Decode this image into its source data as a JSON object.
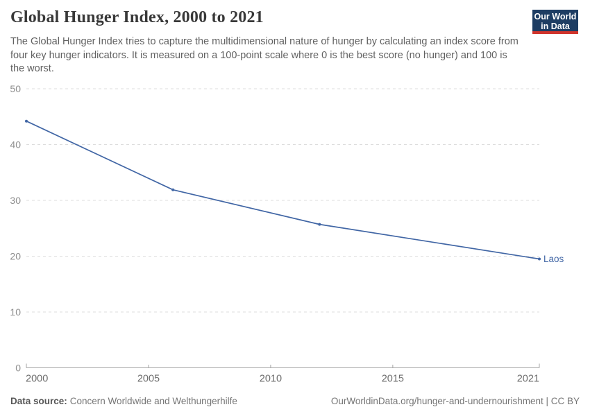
{
  "header": {
    "title": "Global Hunger Index, 2000 to 2021",
    "subtitle": "The Global Hunger Index tries to capture the multidimensional nature of hunger by calculating an index score from four key hunger indicators. It is measured on a 100-point scale where 0 is the best score (no hunger) and 100 is the worst."
  },
  "logo": {
    "line1": "Our World",
    "line2": "in Data",
    "bg_color": "#1d3d63",
    "stripe_color": "#d0342c"
  },
  "chart_data": {
    "type": "line",
    "title": "Global Hunger Index, 2000 to 2021",
    "xlabel": "",
    "ylabel": "",
    "xlim": [
      2000,
      2021
    ],
    "ylim": [
      0,
      50
    ],
    "x_ticks": [
      2000,
      2005,
      2010,
      2015,
      2021
    ],
    "y_ticks": [
      0,
      10,
      20,
      30,
      40,
      50
    ],
    "grid": "horizontal-dashed",
    "legend_position": "end-of-line-label",
    "colors": {
      "grid_line": "#dcdcdc",
      "axis_line": "#a5a5a5",
      "y_tick_label": "#8e8e8e",
      "x_tick_label": "#6d6d6d"
    },
    "series": [
      {
        "name": "Laos",
        "color": "#4166a5",
        "x": [
          2000,
          2006,
          2012,
          2021
        ],
        "values": [
          44.2,
          31.9,
          25.7,
          19.5
        ]
      }
    ]
  },
  "footer": {
    "source_label": "Data source:",
    "source_value": "Concern Worldwide and Welthungerhilfe",
    "attribution": "OurWorldinData.org/hunger-and-undernourishment | CC BY"
  }
}
